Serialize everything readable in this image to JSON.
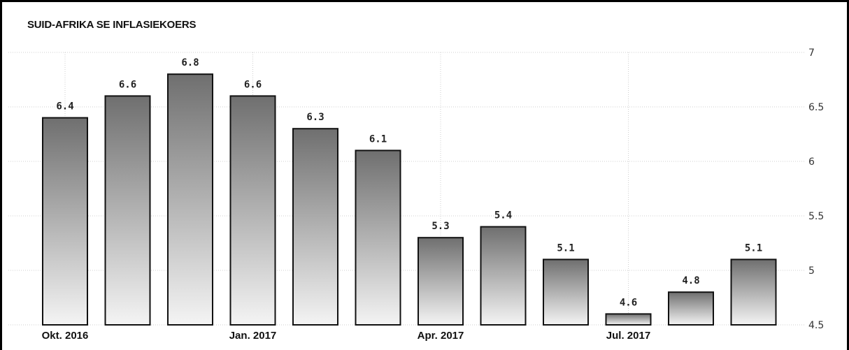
{
  "chart_data": {
    "type": "bar",
    "title": "SUID-AFRIKA SE INFLASIEKOERS",
    "categories": [
      "Okt. 2016",
      "",
      "",
      "Jan. 2017",
      "",
      "",
      "Apr. 2017",
      "",
      "",
      "Jul. 2017",
      "",
      ""
    ],
    "values": [
      6.4,
      6.6,
      6.8,
      6.6,
      6.3,
      6.1,
      5.3,
      5.4,
      5.1,
      4.6,
      4.8,
      5.1
    ],
    "data_labels": [
      "6.4",
      "6.6",
      "6.8",
      "6.6",
      "6.3",
      "6.1",
      "5.3",
      "5.4",
      "5.1",
      "4.6",
      "4.8",
      "5.1"
    ],
    "x_tick_labels": [
      "Okt. 2016",
      "Jan. 2017",
      "Apr. 2017",
      "Jul. 2017"
    ],
    "y_ticks": [
      "7",
      "6.5",
      "6",
      "5.5",
      "5",
      "4.5"
    ],
    "ylim": [
      4.5,
      7
    ],
    "grid": true,
    "y_axis_side": "right",
    "colors": {
      "bar_top": "#6f6f6f",
      "bar_bottom": "#f4f4f4",
      "bar_edge": "#111111",
      "grid": "#cfcfcf"
    }
  }
}
